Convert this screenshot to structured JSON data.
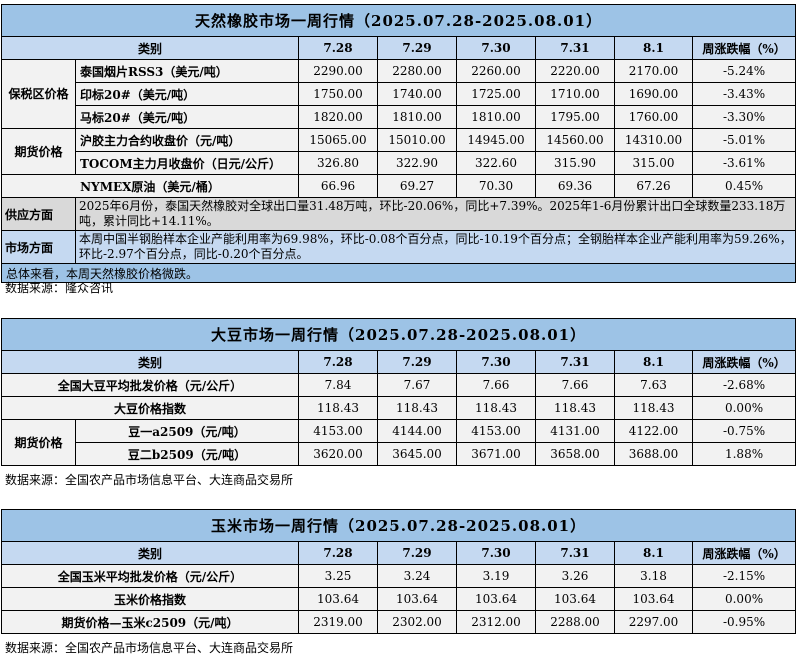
{
  "rubber": {
    "title": "天然橡胶市场一周行情（2025.07.28-2025.08.01）",
    "headers": [
      "类别",
      "7.28",
      "7.29",
      "7.30",
      "7.31",
      "8.1",
      "周涨跌幅（%）"
    ],
    "groups": [
      "保税区价格",
      "期货价格"
    ],
    "rows": [
      {
        "label": "泰国烟片RSS3（美元/吨）",
        "values": [
          "2290.00",
          "2280.00",
          "2260.00",
          "2220.00",
          "2170.00"
        ],
        "change": "-5.24%"
      },
      {
        "label": "印标20#（美元/吨）",
        "values": [
          "1750.00",
          "1740.00",
          "1725.00",
          "1710.00",
          "1690.00"
        ],
        "change": "-3.43%"
      },
      {
        "label": "马标20#（美元/吨）",
        "values": [
          "1820.00",
          "1810.00",
          "1810.00",
          "1795.00",
          "1760.00"
        ],
        "change": "-3.30%"
      },
      {
        "label": "沪胶主力合约收盘价（元/吨）",
        "values": [
          "15065.00",
          "15010.00",
          "14945.00",
          "14560.00",
          "14310.00"
        ],
        "change": "-5.01%"
      },
      {
        "label": "TOCOM主力月收盘价（日元/公斤）",
        "values": [
          "326.80",
          "322.90",
          "322.60",
          "315.90",
          "315.00"
        ],
        "change": "-3.61%"
      },
      {
        "label": "NYMEX原油（美元/桶）",
        "values": [
          "66.96",
          "69.27",
          "70.30",
          "69.36",
          "67.26"
        ],
        "change": "0.45%"
      }
    ],
    "supply_label": "供应方面",
    "supply_text": "2025年6月份，泰国天然橡胶对全球出口量31.48万吨，环比-20.06%，同比+7.39%。2025年1-6月份累计出口全球数量233.18万吨，累计同比+14.11%。",
    "market_label": "市场方面",
    "market_text": "本周中国半钢胎样本企业产能利用率为69.98%，环比-0.08个百分点，同比-10.19个百分点；全钢胎样本企业产能利用率为59.26%，环比-2.97个百分点，同比-0.20个百分点。",
    "summary": "总体来看，本周天然橡胶价格微跌。",
    "source": "数据来源：隆众咨讯"
  },
  "soy": {
    "title": "大豆市场一周行情（2025.07.28-2025.08.01）",
    "headers": [
      "类别",
      "7.28",
      "7.29",
      "7.30",
      "7.31",
      "8.1",
      "周涨跌幅（%）"
    ],
    "group": "期货价格",
    "rows": [
      {
        "label": "全国大豆平均批发价格（元/公斤）",
        "values": [
          "7.84",
          "7.67",
          "7.66",
          "7.66",
          "7.63"
        ],
        "change": "-2.68%"
      },
      {
        "label": "大豆价格指数",
        "values": [
          "118.43",
          "118.43",
          "118.43",
          "118.43",
          "118.43"
        ],
        "change": "0.00%"
      },
      {
        "label": "豆一a2509（元/吨）",
        "values": [
          "4153.00",
          "4144.00",
          "4153.00",
          "4131.00",
          "4122.00"
        ],
        "change": "-0.75%"
      },
      {
        "label": "豆二b2509（元/吨）",
        "values": [
          "3620.00",
          "3645.00",
          "3671.00",
          "3658.00",
          "3688.00"
        ],
        "change": "1.88%"
      }
    ],
    "source": "数据来源：全国农产品市场信息平台、大连商品交易所"
  },
  "corn": {
    "title": "玉米市场一周行情（2025.07.28-2025.08.01）",
    "headers": [
      "类别",
      "7.28",
      "7.29",
      "7.30",
      "7.31",
      "8.1",
      "周涨跌幅（%）"
    ],
    "rows": [
      {
        "label": "全国玉米平均批发价格（元/公斤）",
        "values": [
          "3.25",
          "3.24",
          "3.19",
          "3.26",
          "3.18"
        ],
        "change": "-2.15%"
      },
      {
        "label": "玉米价格指数",
        "values": [
          "103.64",
          "103.64",
          "103.64",
          "103.64",
          "103.64"
        ],
        "change": "0.00%"
      },
      {
        "label": "期货价格—玉米c2509（元/吨）",
        "values": [
          "2319.00",
          "2302.00",
          "2312.00",
          "2288.00",
          "2297.00"
        ],
        "change": "-0.95%"
      }
    ],
    "source": "数据来源：全国农产品市场信息平台、大连商品交易所"
  }
}
